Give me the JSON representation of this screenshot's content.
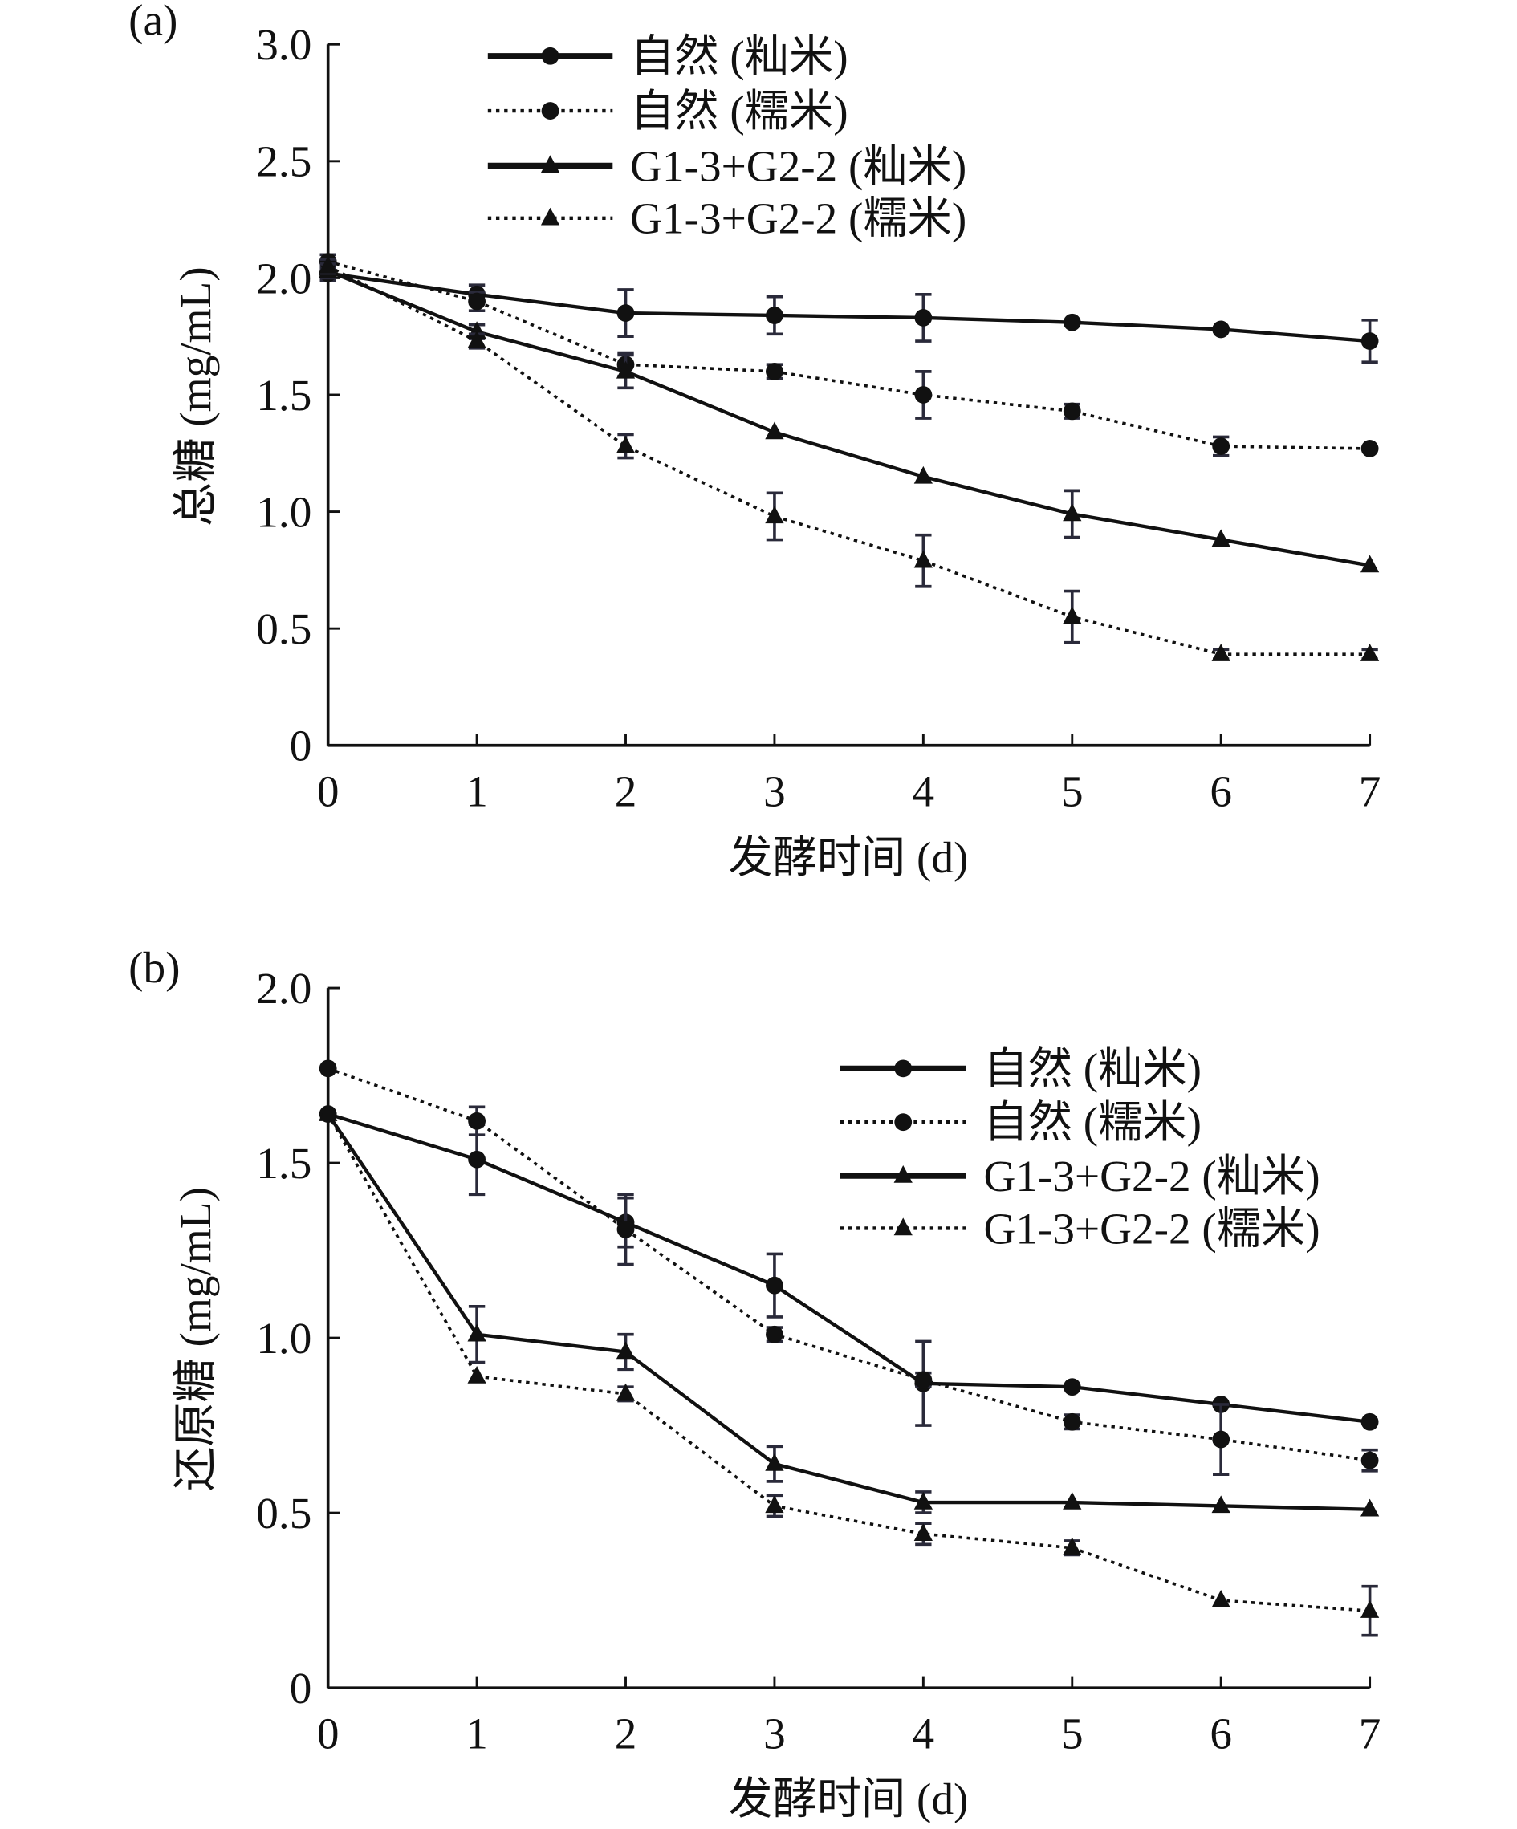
{
  "chart_data": [
    {
      "type": "line",
      "panel_label": "(a)",
      "xlabel": "发酵时间 (d)",
      "ylabel": "总糖 (mg/mL)",
      "x": [
        0,
        1,
        2,
        3,
        4,
        5,
        6,
        7
      ],
      "xticks": [
        "0",
        "1",
        "2",
        "3",
        "4",
        "5",
        "6",
        "7"
      ],
      "ylim": [
        0,
        3.0
      ],
      "yticks": [
        "0",
        "0.5",
        "1.0",
        "1.5",
        "2.0",
        "2.5",
        "3.0"
      ],
      "legend_position": "top-center",
      "series": [
        {
          "name": "自然 (籼米)",
          "style": "solid",
          "marker": "circle",
          "values": [
            2.02,
            1.93,
            1.85,
            1.84,
            1.83,
            1.81,
            1.78,
            1.73
          ],
          "errors": [
            0.03,
            0.04,
            0.1,
            0.08,
            0.1,
            0.01,
            0.01,
            0.09
          ]
        },
        {
          "name": "自然 (糯米)",
          "style": "dotted",
          "marker": "circle",
          "values": [
            2.07,
            1.9,
            1.63,
            1.6,
            1.5,
            1.43,
            1.28,
            1.27
          ],
          "errors": [
            0.03,
            0.04,
            0.05,
            0.03,
            0.1,
            0.03,
            0.04,
            0.01
          ]
        },
        {
          "name": "G1-3+G2-2 (籼米)",
          "style": "solid",
          "marker": "triangle",
          "values": [
            2.03,
            1.77,
            1.6,
            1.34,
            1.15,
            0.99,
            0.88,
            0.77
          ],
          "errors": [
            0.03,
            0.03,
            0.07,
            0.01,
            0.01,
            0.1,
            0.01,
            0.01
          ]
        },
        {
          "name": "G1-3+G2-2 (糯米)",
          "style": "dotted",
          "marker": "triangle",
          "values": [
            2.05,
            1.73,
            1.28,
            0.98,
            0.79,
            0.55,
            0.39,
            0.39
          ],
          "errors": [
            0.03,
            0.03,
            0.05,
            0.1,
            0.11,
            0.11,
            0.02,
            0.02
          ]
        }
      ]
    },
    {
      "type": "line",
      "panel_label": "(b)",
      "xlabel": "发酵时间 (d)",
      "ylabel": "还原糖 (mg/mL)",
      "x": [
        0,
        1,
        2,
        3,
        4,
        5,
        6,
        7
      ],
      "xticks": [
        "0",
        "1",
        "2",
        "3",
        "4",
        "5",
        "6",
        "7"
      ],
      "ylim": [
        0,
        2.0
      ],
      "yticks": [
        "0",
        "0.5",
        "1.0",
        "1.5",
        "2.0"
      ],
      "legend_position": "top-right",
      "series": [
        {
          "name": "自然 (籼米)",
          "style": "solid",
          "marker": "circle",
          "values": [
            1.64,
            1.51,
            1.33,
            1.15,
            0.87,
            0.86,
            0.81,
            0.76
          ],
          "errors": [
            0.01,
            0.1,
            0.07,
            0.09,
            0.12,
            0.01,
            0.01,
            0.01
          ]
        },
        {
          "name": "自然 (糯米)",
          "style": "dotted",
          "marker": "circle",
          "values": [
            1.77,
            1.62,
            1.31,
            1.01,
            0.88,
            0.76,
            0.71,
            0.65
          ],
          "errors": [
            0.01,
            0.04,
            0.1,
            0.02,
            0.02,
            0.02,
            0.1,
            0.03
          ]
        },
        {
          "name": "G1-3+G2-2 (籼米)",
          "style": "solid",
          "marker": "triangle",
          "values": [
            1.64,
            1.01,
            0.96,
            0.64,
            0.53,
            0.53,
            0.52,
            0.51
          ],
          "errors": [
            0.01,
            0.08,
            0.05,
            0.05,
            0.03,
            0.01,
            0.01,
            0.01
          ]
        },
        {
          "name": "G1-3+G2-2 (糯米)",
          "style": "dotted",
          "marker": "triangle",
          "values": [
            1.64,
            0.89,
            0.84,
            0.52,
            0.44,
            0.4,
            0.25,
            0.22
          ],
          "errors": [
            0.01,
            0.01,
            0.02,
            0.03,
            0.03,
            0.02,
            0.01,
            0.07
          ]
        }
      ]
    }
  ]
}
